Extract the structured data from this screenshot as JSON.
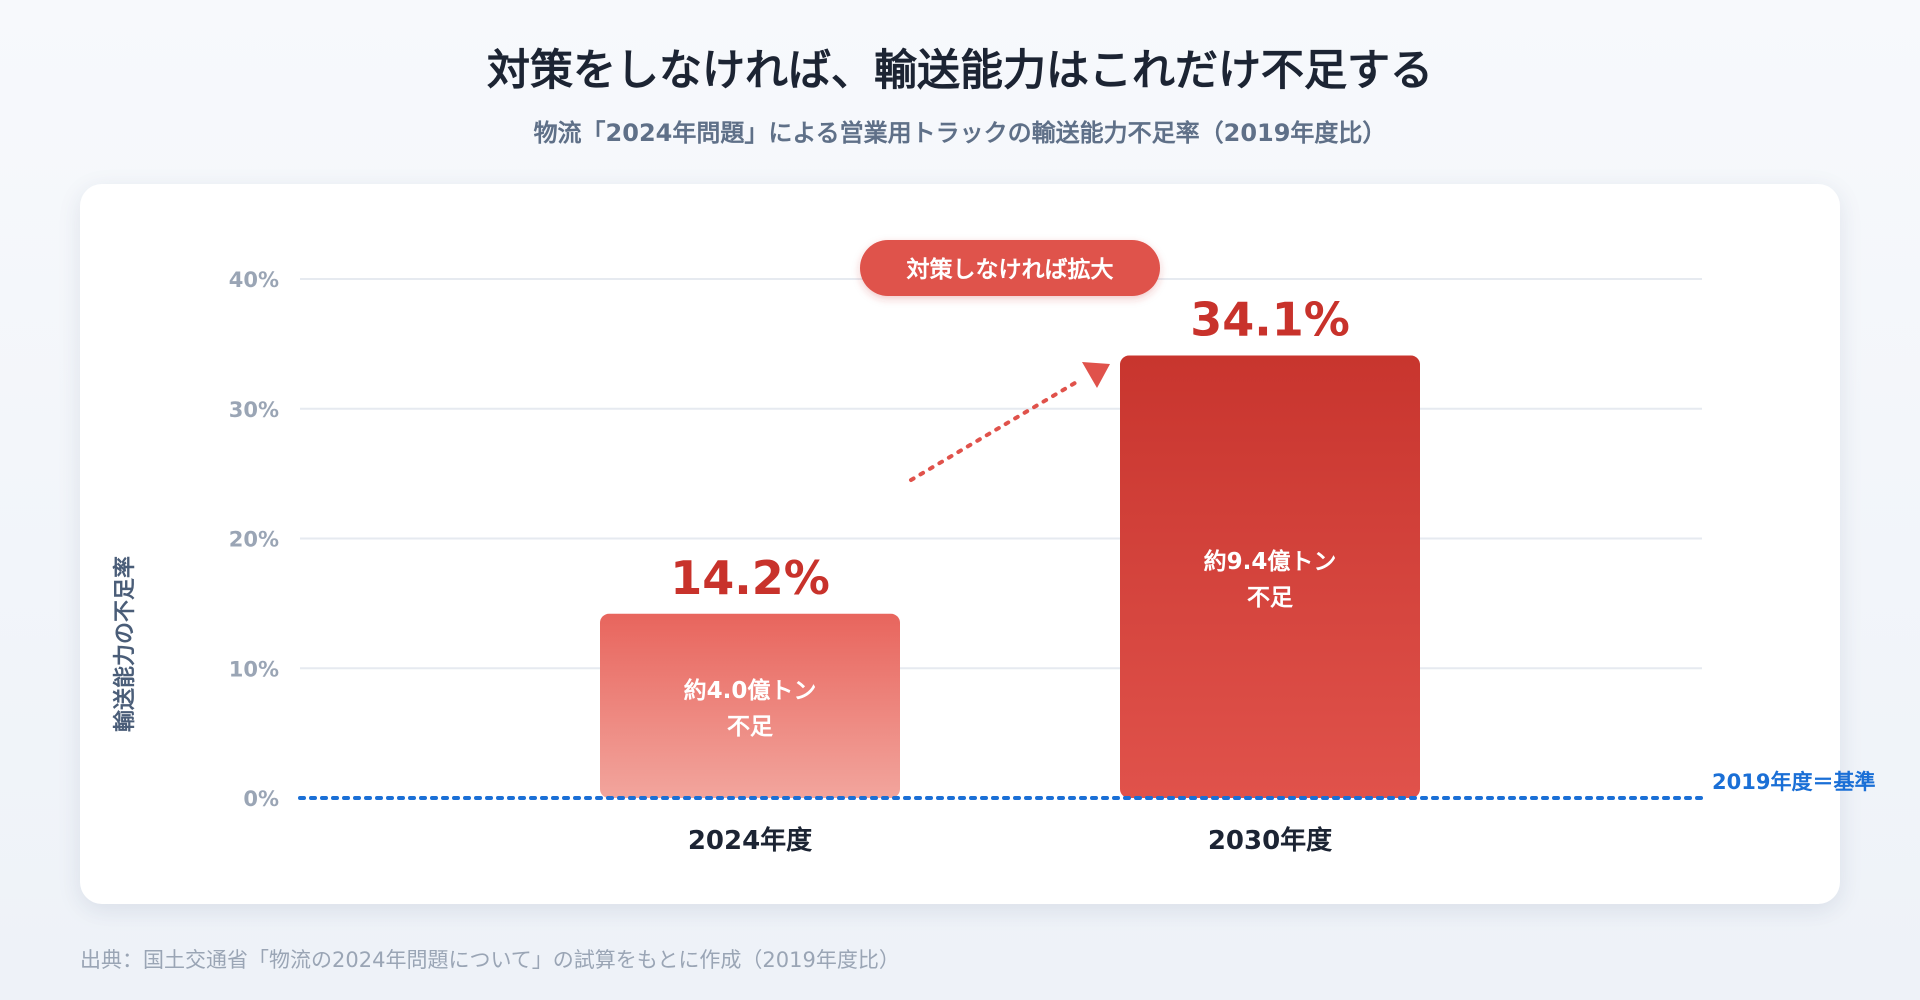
{
  "header": {
    "title": "対策をしなければ、輸送能力はこれだけ不足する",
    "subtitle": "物流「2024年問題」による営業用トラックの輸送能力不足率（2019年度比）"
  },
  "chart_data": {
    "type": "bar",
    "ylabel": "輸送能力の不足率",
    "ylim": [
      0,
      40
    ],
    "yticks": [
      0,
      10,
      20,
      30,
      40
    ],
    "ytick_labels": [
      "0%",
      "10%",
      "20%",
      "30%",
      "40%"
    ],
    "categories": [
      "2024年度",
      "2030年度"
    ],
    "values": [
      14.2,
      34.1
    ],
    "value_labels": [
      "14.2%",
      "34.1%"
    ],
    "bar_inner_labels": [
      [
        "約4.0億トン",
        "不足"
      ],
      [
        "約9.4億トン",
        "不足"
      ]
    ],
    "baseline_label": "2019年度＝基準",
    "callout": "対策しなければ拡大",
    "grid": true,
    "legend": "none",
    "colors": {
      "bar_2024_top": "#e8655d",
      "bar_2024_bottom": "#f2a59d",
      "bar_2030_top": "#c8352e",
      "bar_2030_bottom": "#e0524b",
      "value_label": "#c8322b",
      "baseline": "#1a6fd6",
      "axis_text": "#9aa5b5",
      "ylabel": "#4a5d78"
    }
  },
  "footer": {
    "source": "出典：国土交通省「物流の2024年問題について」の試算をもとに作成（2019年度比）"
  }
}
